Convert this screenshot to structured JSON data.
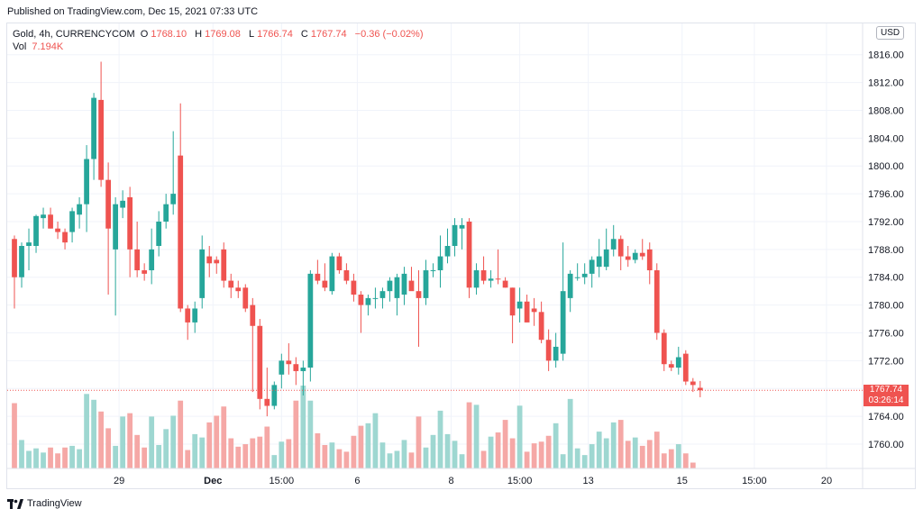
{
  "header": {
    "published": "Published on TradingView.com, Dec 15, 2021 07:33 UTC"
  },
  "legend": {
    "symbol": "Gold, 4h, CURRENCYCOM",
    "o_label": "O",
    "o_value": "1768.10",
    "h_label": "H",
    "h_value": "1769.08",
    "l_label": "L",
    "l_value": "1766.74",
    "c_label": "C",
    "c_value": "1767.74",
    "change": "−0.36 (−0.02%)",
    "vol_label": "Vol",
    "vol_value": "7.194K"
  },
  "currency_button": "USD",
  "last_price": {
    "value": "1767.74",
    "countdown": "03:26:14"
  },
  "brand": {
    "name": "TradingView"
  },
  "colors": {
    "up": "#26a69a",
    "down": "#ef5350",
    "up_vol": "#9ed7d1",
    "down_vol": "#f5a8a6",
    "grid": "#f0f3fa",
    "text": "#131722"
  },
  "chart_data": {
    "type": "candlestick",
    "yaxis": {
      "ticks": [
        1760,
        1764,
        1768,
        1772,
        1776,
        1780,
        1784,
        1788,
        1792,
        1796,
        1800,
        1804,
        1808,
        1812,
        1816
      ],
      "ylim": [
        1756.5,
        1820.5
      ]
    },
    "xaxis": {
      "labels": [
        "29",
        "Dec",
        "15:00",
        "6",
        "8",
        "15:00",
        "13",
        "15",
        "15:00",
        "20"
      ],
      "label_index": [
        14.5,
        27.5,
        37,
        47.5,
        60.5,
        70,
        79.5,
        92.5,
        102.5,
        112.5
      ],
      "range": [
        -1,
        117.5
      ]
    },
    "candles": [
      {
        "o": 1789.5,
        "h": 1790.0,
        "l": 1779.5,
        "c": 1784.0
      },
      {
        "o": 1784.0,
        "h": 1789.0,
        "l": 1782.5,
        "c": 1788.5
      },
      {
        "o": 1788.5,
        "h": 1791.0,
        "l": 1785.0,
        "c": 1789.0
      },
      {
        "o": 1788.5,
        "h": 1793.0,
        "l": 1787.5,
        "c": 1792.8
      },
      {
        "o": 1792.5,
        "h": 1794.0,
        "l": 1791.0,
        "c": 1793.0
      },
      {
        "o": 1793.0,
        "h": 1794.0,
        "l": 1791.0,
        "c": 1791.0
      },
      {
        "o": 1791.0,
        "h": 1792.0,
        "l": 1789.5,
        "c": 1790.5
      },
      {
        "o": 1790.5,
        "h": 1791.0,
        "l": 1788.0,
        "c": 1789.0
      },
      {
        "o": 1790.5,
        "h": 1794.0,
        "l": 1789.0,
        "c": 1793.5
      },
      {
        "o": 1793.0,
        "h": 1795.5,
        "l": 1791.0,
        "c": 1794.5
      },
      {
        "o": 1794.5,
        "h": 1803.0,
        "l": 1790.5,
        "c": 1801.0
      },
      {
        "o": 1801.0,
        "h": 1810.5,
        "l": 1798.0,
        "c": 1809.8
      },
      {
        "o": 1809.5,
        "h": 1815.0,
        "l": 1797.0,
        "c": 1798.0
      },
      {
        "o": 1798.0,
        "h": 1800.5,
        "l": 1781.5,
        "c": 1791.0
      },
      {
        "o": 1788.0,
        "h": 1795.5,
        "l": 1778.5,
        "c": 1794.5
      },
      {
        "o": 1794.0,
        "h": 1796.5,
        "l": 1792.5,
        "c": 1795.0
      },
      {
        "o": 1795.5,
        "h": 1797.0,
        "l": 1784.0,
        "c": 1788.0
      },
      {
        "o": 1788.0,
        "h": 1792.0,
        "l": 1784.0,
        "c": 1785.0
      },
      {
        "o": 1785.0,
        "h": 1786.0,
        "l": 1783.5,
        "c": 1784.5
      },
      {
        "o": 1785.0,
        "h": 1791.0,
        "l": 1783.0,
        "c": 1788.0
      },
      {
        "o": 1788.5,
        "h": 1793.5,
        "l": 1787.0,
        "c": 1792.0
      },
      {
        "o": 1792.0,
        "h": 1796.0,
        "l": 1791.0,
        "c": 1794.5
      },
      {
        "o": 1794.5,
        "h": 1805.0,
        "l": 1793.0,
        "c": 1796.0
      },
      {
        "o": 1801.5,
        "h": 1809.0,
        "l": 1779.0,
        "c": 1779.5
      },
      {
        "o": 1779.5,
        "h": 1780.0,
        "l": 1775.0,
        "c": 1777.5
      },
      {
        "o": 1777.5,
        "h": 1780.5,
        "l": 1776.0,
        "c": 1779.5
      },
      {
        "o": 1781.0,
        "h": 1790.0,
        "l": 1779.5,
        "c": 1788.0
      },
      {
        "o": 1787.0,
        "h": 1788.5,
        "l": 1784.0,
        "c": 1786.0
      },
      {
        "o": 1786.5,
        "h": 1787.0,
        "l": 1784.5,
        "c": 1786.0
      },
      {
        "o": 1788.0,
        "h": 1789.0,
        "l": 1782.5,
        "c": 1783.5
      },
      {
        "o": 1783.5,
        "h": 1784.5,
        "l": 1781.0,
        "c": 1782.5
      },
      {
        "o": 1782.5,
        "h": 1783.5,
        "l": 1781.0,
        "c": 1782.0
      },
      {
        "o": 1782.5,
        "h": 1783.0,
        "l": 1779.0,
        "c": 1779.5
      },
      {
        "o": 1780.0,
        "h": 1781.0,
        "l": 1767.5,
        "c": 1777.0
      },
      {
        "o": 1777.0,
        "h": 1778.0,
        "l": 1765.0,
        "c": 1766.5
      },
      {
        "o": 1766.5,
        "h": 1771.0,
        "l": 1764.0,
        "c": 1765.5
      },
      {
        "o": 1765.5,
        "h": 1769.0,
        "l": 1765.0,
        "c": 1768.5
      },
      {
        "o": 1770.0,
        "h": 1773.0,
        "l": 1768.0,
        "c": 1772.0
      },
      {
        "o": 1772.0,
        "h": 1774.5,
        "l": 1770.0,
        "c": 1771.5
      },
      {
        "o": 1771.5,
        "h": 1772.5,
        "l": 1768.5,
        "c": 1770.5
      },
      {
        "o": 1770.5,
        "h": 1772.0,
        "l": 1767.0,
        "c": 1771.0
      },
      {
        "o": 1771.0,
        "h": 1785.0,
        "l": 1769.0,
        "c": 1784.5
      },
      {
        "o": 1784.5,
        "h": 1786.5,
        "l": 1783.0,
        "c": 1783.5
      },
      {
        "o": 1783.5,
        "h": 1786.0,
        "l": 1782.0,
        "c": 1782.5
      },
      {
        "o": 1782.0,
        "h": 1787.5,
        "l": 1781.5,
        "c": 1787.0
      },
      {
        "o": 1787.0,
        "h": 1787.5,
        "l": 1784.5,
        "c": 1785.0
      },
      {
        "o": 1785.0,
        "h": 1786.0,
        "l": 1783.0,
        "c": 1783.5
      },
      {
        "o": 1783.5,
        "h": 1784.5,
        "l": 1780.5,
        "c": 1781.5
      },
      {
        "o": 1781.5,
        "h": 1782.0,
        "l": 1776.0,
        "c": 1780.0
      },
      {
        "o": 1780.0,
        "h": 1781.5,
        "l": 1778.5,
        "c": 1781.0
      },
      {
        "o": 1781.0,
        "h": 1782.5,
        "l": 1779.5,
        "c": 1781.0
      },
      {
        "o": 1781.0,
        "h": 1782.5,
        "l": 1779.5,
        "c": 1782.0
      },
      {
        "o": 1782.0,
        "h": 1784.0,
        "l": 1780.5,
        "c": 1783.5
      },
      {
        "o": 1781.0,
        "h": 1784.5,
        "l": 1778.5,
        "c": 1784.0
      },
      {
        "o": 1781.5,
        "h": 1785.5,
        "l": 1780.0,
        "c": 1784.5
      },
      {
        "o": 1783.5,
        "h": 1785.5,
        "l": 1782.5,
        "c": 1782.0
      },
      {
        "o": 1782.0,
        "h": 1785.0,
        "l": 1774.0,
        "c": 1781.0
      },
      {
        "o": 1781.0,
        "h": 1786.5,
        "l": 1780.0,
        "c": 1785.0
      },
      {
        "o": 1785.0,
        "h": 1786.0,
        "l": 1784.0,
        "c": 1785.0
      },
      {
        "o": 1785.0,
        "h": 1790.0,
        "l": 1782.5,
        "c": 1787.0
      },
      {
        "o": 1787.0,
        "h": 1791.0,
        "l": 1786.0,
        "c": 1788.5
      },
      {
        "o": 1788.5,
        "h": 1792.5,
        "l": 1787.0,
        "c": 1791.5
      },
      {
        "o": 1791.0,
        "h": 1792.5,
        "l": 1788.0,
        "c": 1791.5
      },
      {
        "o": 1792.0,
        "h": 1792.5,
        "l": 1781.0,
        "c": 1782.5
      },
      {
        "o": 1782.5,
        "h": 1786.0,
        "l": 1781.5,
        "c": 1785.0
      },
      {
        "o": 1785.0,
        "h": 1787.0,
        "l": 1783.0,
        "c": 1783.5
      },
      {
        "o": 1783.5,
        "h": 1785.0,
        "l": 1782.5,
        "c": 1783.8
      },
      {
        "o": 1783.8,
        "h": 1788.0,
        "l": 1783.0,
        "c": 1783.7
      },
      {
        "o": 1783.5,
        "h": 1784.0,
        "l": 1782.5,
        "c": 1782.5
      },
      {
        "o": 1782.5,
        "h": 1782.5,
        "l": 1774.5,
        "c": 1778.5
      },
      {
        "o": 1779.5,
        "h": 1782.5,
        "l": 1777.5,
        "c": 1780.5
      },
      {
        "o": 1780.5,
        "h": 1781.5,
        "l": 1777.5,
        "c": 1777.5
      },
      {
        "o": 1779.5,
        "h": 1781.0,
        "l": 1777.0,
        "c": 1779.0
      },
      {
        "o": 1779.0,
        "h": 1780.5,
        "l": 1774.5,
        "c": 1775.0
      },
      {
        "o": 1775.0,
        "h": 1776.5,
        "l": 1770.5,
        "c": 1772.0
      },
      {
        "o": 1772.0,
        "h": 1776.0,
        "l": 1771.0,
        "c": 1774.0
      },
      {
        "o": 1773.0,
        "h": 1789.0,
        "l": 1772.0,
        "c": 1782.0
      },
      {
        "o": 1781.0,
        "h": 1785.0,
        "l": 1779.0,
        "c": 1784.5
      },
      {
        "o": 1784.0,
        "h": 1786.0,
        "l": 1783.5,
        "c": 1784.0
      },
      {
        "o": 1784.0,
        "h": 1786.0,
        "l": 1783.0,
        "c": 1784.5
      },
      {
        "o": 1784.5,
        "h": 1787.0,
        "l": 1782.5,
        "c": 1786.5
      },
      {
        "o": 1785.5,
        "h": 1789.5,
        "l": 1784.0,
        "c": 1787.0
      },
      {
        "o": 1785.5,
        "h": 1791.0,
        "l": 1785.0,
        "c": 1788.0
      },
      {
        "o": 1788.0,
        "h": 1791.5,
        "l": 1787.0,
        "c": 1789.5
      },
      {
        "o": 1789.5,
        "h": 1790.0,
        "l": 1785.0,
        "c": 1787.0
      },
      {
        "o": 1787.0,
        "h": 1788.5,
        "l": 1785.5,
        "c": 1786.5
      },
      {
        "o": 1786.5,
        "h": 1788.0,
        "l": 1786.0,
        "c": 1787.5
      },
      {
        "o": 1787.5,
        "h": 1789.5,
        "l": 1786.5,
        "c": 1787.0
      },
      {
        "o": 1788.0,
        "h": 1789.0,
        "l": 1783.0,
        "c": 1785.0
      },
      {
        "o": 1785.0,
        "h": 1786.0,
        "l": 1775.0,
        "c": 1776.0
      },
      {
        "o": 1776.0,
        "h": 1776.5,
        "l": 1770.5,
        "c": 1771.5
      },
      {
        "o": 1771.5,
        "h": 1772.0,
        "l": 1770.5,
        "c": 1771.0
      },
      {
        "o": 1771.0,
        "h": 1774.0,
        "l": 1770.0,
        "c": 1772.5
      },
      {
        "o": 1773.0,
        "h": 1773.5,
        "l": 1768.5,
        "c": 1769.0
      },
      {
        "o": 1769.0,
        "h": 1769.5,
        "l": 1767.5,
        "c": 1768.5
      },
      {
        "o": 1768.1,
        "h": 1769.08,
        "l": 1766.74,
        "c": 1767.74
      }
    ],
    "volume": [
      7.8,
      3.4,
      2.1,
      2.4,
      1.9,
      2.5,
      1.8,
      2.5,
      2.7,
      2.3,
      8.9,
      8.2,
      6.8,
      4.8,
      2.7,
      6.2,
      6.6,
      4.0,
      2.5,
      6.2,
      2.8,
      4.7,
      6.3,
      8.1,
      2.2,
      4.1,
      3.7,
      5.5,
      6.3,
      7.4,
      3.6,
      2.6,
      2.9,
      3.6,
      3.8,
      5.0,
      1.6,
      3.2,
      3.5,
      8.1,
      9.9,
      8.1,
      4.2,
      2.8,
      3.1,
      2.3,
      2.0,
      3.9,
      5.1,
      5.4,
      6.6,
      3.1,
      1.8,
      2.1,
      3.4,
      1.9,
      6.2,
      2.5,
      4.0,
      6.9,
      4.1,
      3.3,
      1.7,
      7.9,
      7.6,
      2.1,
      3.8,
      4.3,
      5.8,
      3.6,
      7.5,
      2.0,
      3.0,
      3.2,
      3.9,
      5.4,
      1.7,
      8.3,
      2.4,
      1.6,
      2.9,
      4.4,
      3.6,
      5.5,
      5.8,
      3.3,
      3.7,
      2.7,
      3.4,
      4.4,
      1.8,
      2.3,
      2.9,
      1.8,
      0.7
    ]
  }
}
